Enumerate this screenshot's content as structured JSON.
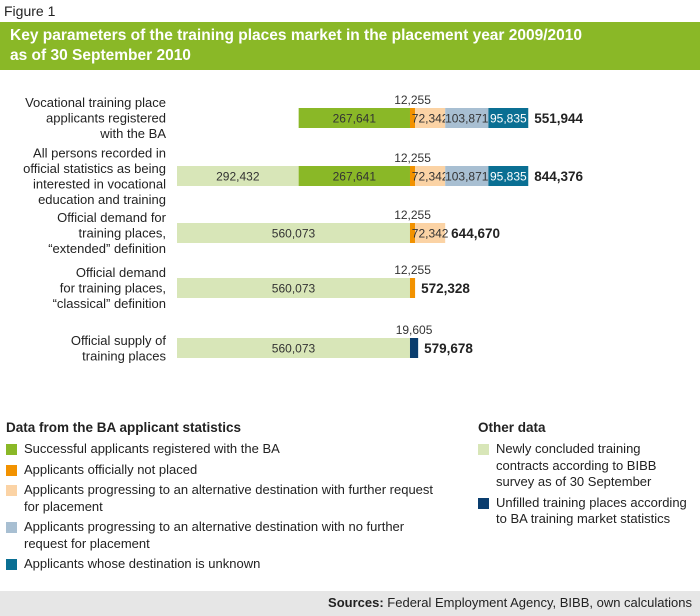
{
  "figure_label": "Figure 1",
  "title_lines": [
    "Key parameters of the training places market in the placement year 2009/2010",
    "as of 30 September 2010"
  ],
  "colors": {
    "light_green": "#d8e6b8",
    "green": "#8ab827",
    "orange": "#f29200",
    "peach": "#fbd3a5",
    "light_blue": "#a8bfd2",
    "teal": "#0a6f93",
    "navy": "#0a3d6e"
  },
  "chart_data": {
    "type": "bar",
    "orientation": "horizontal",
    "stacked": true,
    "categories": [
      [
        "Vocational training place",
        "applicants registered",
        "with the BA"
      ],
      [
        "All persons recorded in",
        "official statistics as being",
        "interested in vocational",
        "education and training"
      ],
      [
        "Official demand for",
        "training places,",
        "“extended” definition"
      ],
      [
        "Official demand",
        "for training places,",
        "“classical” definition"
      ],
      [
        "Official supply of",
        "training places"
      ]
    ],
    "segment_types": [
      {
        "key": "new_contracts",
        "color": "#d8e6b8",
        "label_color": "#333333"
      },
      {
        "key": "successful",
        "color": "#8ab827",
        "label_color": "#333333"
      },
      {
        "key": "not_placed",
        "color": "#f29200",
        "label_color": "#333333"
      },
      {
        "key": "alt_further",
        "color": "#fbd3a5",
        "label_color": "#333333"
      },
      {
        "key": "alt_no_further",
        "color": "#a8bfd2",
        "label_color": "#333333"
      },
      {
        "key": "unknown",
        "color": "#0a6f93",
        "label_color": "#ffffff"
      },
      {
        "key": "unfilled",
        "color": "#0a3d6e",
        "label_color": "#ffffff"
      }
    ],
    "rows": [
      {
        "segments": [
          {
            "type": "successful",
            "value": 267641,
            "label": "267,641"
          },
          {
            "type": "not_placed",
            "value": 12255,
            "label": "12,255",
            "label_above": true
          },
          {
            "type": "alt_further",
            "value": 72342,
            "label": "72,342"
          },
          {
            "type": "alt_no_further",
            "value": 103871,
            "label": "103,871"
          },
          {
            "type": "unknown",
            "value": 95835,
            "label": "95,835"
          }
        ],
        "offset": 292432,
        "total": "551,944"
      },
      {
        "segments": [
          {
            "type": "new_contracts",
            "value": 292432,
            "label": "292,432"
          },
          {
            "type": "successful",
            "value": 267641,
            "label": "267,641"
          },
          {
            "type": "not_placed",
            "value": 12255,
            "label": "12,255",
            "label_above": true
          },
          {
            "type": "alt_further",
            "value": 72342,
            "label": "72,342"
          },
          {
            "type": "alt_no_further",
            "value": 103871,
            "label": "103,871"
          },
          {
            "type": "unknown",
            "value": 95835,
            "label": "95,835"
          }
        ],
        "offset": 0,
        "total": "844,376"
      },
      {
        "segments": [
          {
            "type": "new_contracts",
            "value": 560073,
            "label": "560,073"
          },
          {
            "type": "not_placed",
            "value": 12255,
            "label": "12,255",
            "label_above": true
          },
          {
            "type": "alt_further",
            "value": 72342,
            "label": "72,342"
          }
        ],
        "offset": 0,
        "total": "644,670"
      },
      {
        "segments": [
          {
            "type": "new_contracts",
            "value": 560073,
            "label": "560,073"
          },
          {
            "type": "not_placed",
            "value": 12255,
            "label": "12,255",
            "label_above": true
          }
        ],
        "offset": 0,
        "total": "572,328"
      },
      {
        "segments": [
          {
            "type": "new_contracts",
            "value": 560073,
            "label": "560,073"
          },
          {
            "type": "unfilled",
            "value": 19605,
            "label": "19,605",
            "label_above": true
          }
        ],
        "offset": 0,
        "total": "579,678"
      }
    ],
    "xlim": [
      0,
      844376
    ],
    "grid": false,
    "legend_position": "bottom"
  },
  "legend_left": {
    "heading": "Data from the BA applicant statistics",
    "items": [
      {
        "color": "#8ab827",
        "label": "Successful applicants registered with the BA"
      },
      {
        "color": "#f29200",
        "label": "Applicants officially not placed"
      },
      {
        "color": "#fbd3a5",
        "label": "Applicants progressing to an alternative destination with further request for placement"
      },
      {
        "color": "#a8bfd2",
        "label": "Applicants progressing to an alternative destination with no further request for placement"
      },
      {
        "color": "#0a6f93",
        "label": "Applicants whose destination is unknown"
      }
    ]
  },
  "legend_right": {
    "heading": "Other data",
    "items": [
      {
        "color": "#d8e6b8",
        "label": "Newly concluded training contracts according to BIBB survey as of 30 September"
      },
      {
        "color": "#0a3d6e",
        "label": "Unfilled training places according to BA training market statistics"
      }
    ]
  },
  "sources": {
    "label": "Sources:",
    "text": " Federal Employment Agency, BIBB, own calculations"
  }
}
